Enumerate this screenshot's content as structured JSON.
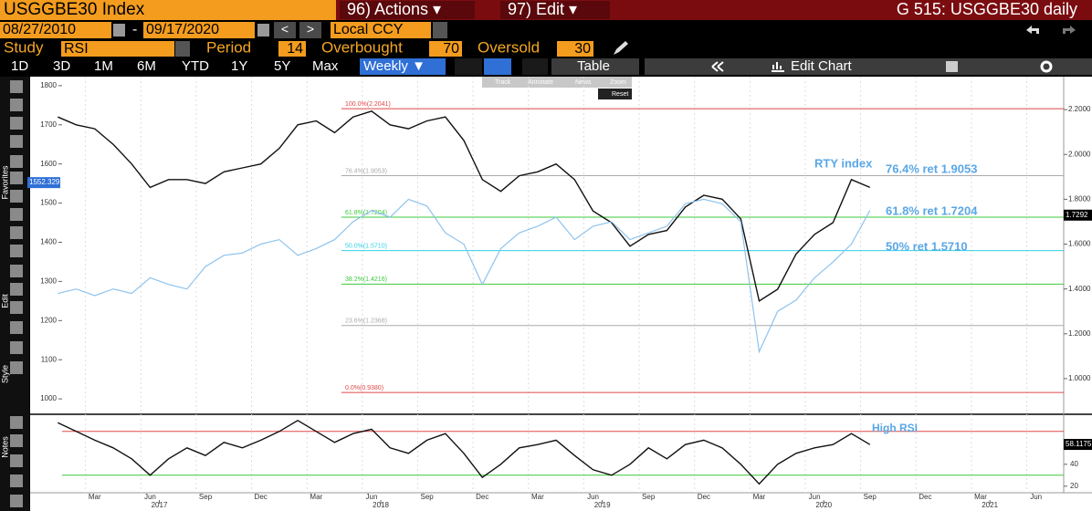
{
  "header": {
    "ticker": "USGGBE30 Index",
    "actions": "96) Actions ▾",
    "edit": "97) Edit ▾",
    "page": "G 515: USGGBE30 daily"
  },
  "controls": {
    "start_date": "08/27/2010",
    "date_separator": "-",
    "end_date": "09/17/2020",
    "nav": [
      "<",
      ">"
    ],
    "currency": "Local CCY",
    "study_label": "Study",
    "study": "RSI",
    "period_label": "Period",
    "period": 14,
    "overbought_label": "Overbought",
    "overbought": 70,
    "oversold_label": "Oversold",
    "oversold": 30
  },
  "tabs": [
    "1D",
    "3D",
    "1M",
    "6M",
    "YTD",
    "1Y",
    "5Y",
    "Max",
    "Weekly ▼"
  ],
  "table": "Table",
  "edit_chart": "Edit Chart",
  "tools": [
    "Track",
    "Annotate",
    "News",
    "Zoom",
    "Reset"
  ],
  "side_labels": [
    "Favorites",
    "Edit",
    "Style",
    "Notes"
  ],
  "chart_data": [
    {
      "type": "line",
      "x": [
        "2017-01",
        "2017-02",
        "2017-03",
        "2017-04",
        "2017-05",
        "2017-06",
        "2017-07",
        "2017-08",
        "2017-09",
        "2017-10",
        "2017-11",
        "2017-12",
        "2018-01",
        "2018-02",
        "2018-03",
        "2018-04",
        "2018-05",
        "2018-06",
        "2018-07",
        "2018-08",
        "2018-09",
        "2018-10",
        "2018-11",
        "2018-12",
        "2019-01",
        "2019-02",
        "2019-03",
        "2019-04",
        "2019-05",
        "2019-06",
        "2019-07",
        "2019-08",
        "2019-09",
        "2019-10",
        "2019-11",
        "2019-12",
        "2020-01",
        "2020-02",
        "2020-03",
        "2020-04",
        "2020-05",
        "2020-06",
        "2020-07",
        "2020-08",
        "2020-09"
      ],
      "xlim": [
        "2016-12",
        "2021-08"
      ],
      "series": [
        {
          "color": "#111111",
          "values": [
            1720,
            1700,
            1690,
            1650,
            1600,
            1540,
            1560,
            1560,
            1550,
            1580,
            1590,
            1600,
            1640,
            1700,
            1710,
            1680,
            1720,
            1735,
            1700,
            1690,
            1710,
            1720,
            1660,
            1560,
            1530,
            1570,
            1580,
            1600,
            1560,
            1480,
            1450,
            1390,
            1420,
            1430,
            1490,
            1520,
            1510,
            1460,
            1250,
            1280,
            1370,
            1420,
            1450,
            1560,
            1540
          ]
        },
        {
          "name": "RTY index",
          "color": "#8ec3ee",
          "axis": "y2",
          "values": [
            1.38,
            1.4,
            1.37,
            1.4,
            1.38,
            1.45,
            1.42,
            1.4,
            1.5,
            1.55,
            1.56,
            1.6,
            1.62,
            1.55,
            1.58,
            1.62,
            1.7,
            1.75,
            1.72,
            1.8,
            1.77,
            1.65,
            1.6,
            1.42,
            1.58,
            1.65,
            1.68,
            1.72,
            1.62,
            1.68,
            1.7,
            1.62,
            1.65,
            1.68,
            1.78,
            1.8,
            1.78,
            1.7,
            1.12,
            1.3,
            1.35,
            1.45,
            1.52,
            1.6,
            1.75
          ]
        }
      ],
      "ylim": [
        963,
        1823
      ],
      "yticks": [
        1000,
        1100,
        1200,
        1300,
        1400,
        1500,
        1600,
        1700,
        1800
      ],
      "y2lim": [
        0.845,
        2.347
      ],
      "y2ticks": [
        {
          "value": 1.0,
          "label": "1.0000"
        },
        {
          "value": 1.2,
          "label": "1.2000"
        },
        {
          "value": 1.4,
          "label": "1.4000"
        },
        {
          "value": 1.6,
          "label": "1.6000"
        },
        {
          "value": 1.8,
          "label": "1.8000"
        },
        {
          "value": 2.0,
          "label": "2.0000"
        },
        {
          "value": 2.2,
          "label": "2.2000"
        }
      ],
      "fib_levels": [
        {
          "label": "100.0%(2.2041)",
          "value": 2.2041,
          "color": "#e04848"
        },
        {
          "label": "76.4%(1.9053)",
          "value": 1.9053,
          "color": "#aaaaaa"
        },
        {
          "label": "61.8%(1.7204)",
          "value": 1.7204,
          "color": "#3cc83c"
        },
        {
          "label": "50.0%(1.5710)",
          "value": 1.571,
          "color": "#30d0e8"
        },
        {
          "label": "38.2%(1.4216)",
          "value": 1.4216,
          "color": "#3cc83c"
        },
        {
          "label": "23.6%(1.2368)",
          "value": 1.2368,
          "color": "#aaaaaa"
        },
        {
          "label": "0.0%(0.9380)",
          "value": 0.938,
          "color": "#e04848"
        }
      ],
      "annotations": [
        "RTY index",
        "76.4% ret 1.9053",
        "61.8% ret 1.7204",
        "50% ret 1.5710"
      ],
      "markers": [
        {
          "value": 1552.329,
          "axis": "y",
          "color": "#2f6fd6"
        },
        {
          "value": 1.7292,
          "axis": "y2",
          "color": "#000000"
        }
      ]
    },
    {
      "type": "line",
      "x": [
        "2017-01",
        "2017-02",
        "2017-03",
        "2017-04",
        "2017-05",
        "2017-06",
        "2017-07",
        "2017-08",
        "2017-09",
        "2017-10",
        "2017-11",
        "2017-12",
        "2018-01",
        "2018-02",
        "2018-03",
        "2018-04",
        "2018-05",
        "2018-06",
        "2018-07",
        "2018-08",
        "2018-09",
        "2018-10",
        "2018-11",
        "2018-12",
        "2019-01",
        "2019-02",
        "2019-03",
        "2019-04",
        "2019-05",
        "2019-06",
        "2019-07",
        "2019-08",
        "2019-09",
        "2019-10",
        "2019-11",
        "2019-12",
        "2020-01",
        "2020-02",
        "2020-03",
        "2020-04",
        "2020-05",
        "2020-06",
        "2020-07",
        "2020-08",
        "2020-09"
      ],
      "xlim": [
        "2016-12",
        "2021-08"
      ],
      "series": [
        {
          "color": "#111111",
          "values": [
            78,
            70,
            62,
            55,
            45,
            30,
            45,
            55,
            48,
            60,
            55,
            62,
            70,
            80,
            70,
            60,
            68,
            72,
            55,
            50,
            62,
            68,
            50,
            28,
            40,
            55,
            58,
            62,
            48,
            35,
            30,
            40,
            55,
            45,
            58,
            62,
            55,
            40,
            22,
            40,
            50,
            55,
            58,
            68,
            58
          ]
        }
      ],
      "ylim": [
        14,
        84
      ],
      "yticks": [
        20,
        40
      ],
      "annotations": [
        "High RSI"
      ],
      "markers": [
        {
          "value": 58.1175,
          "axis": "y",
          "color": "#000000"
        }
      ],
      "xticks": [
        {
          "value": "2017-03",
          "label": "Mar"
        },
        {
          "value": "2017-06",
          "label": "Jun"
        },
        {
          "value": "2017-09",
          "label": "Sep"
        },
        {
          "value": "2017-12",
          "label": "Dec"
        },
        {
          "value": "2018-03",
          "label": "Mar"
        },
        {
          "value": "2018-06",
          "label": "Jun"
        },
        {
          "value": "2018-09",
          "label": "Sep"
        },
        {
          "value": "2018-12",
          "label": "Dec"
        },
        {
          "value": "2019-03",
          "label": "Mar"
        },
        {
          "value": "2019-06",
          "label": "Jun"
        },
        {
          "value": "2019-09",
          "label": "Sep"
        },
        {
          "value": "2019-12",
          "label": "Dec"
        },
        {
          "value": "2020-03",
          "label": "Mar"
        },
        {
          "value": "2020-06",
          "label": "Jun"
        },
        {
          "value": "2020-09",
          "label": "Sep"
        },
        {
          "value": "2020-12",
          "label": "Dec"
        },
        {
          "value": "2021-03",
          "label": "Mar"
        },
        {
          "value": "2021-06",
          "label": "Jun"
        }
      ],
      "year_ticks": [
        {
          "value": "2017-07",
          "label": "2017"
        },
        {
          "value": "2018-07",
          "label": "2018"
        },
        {
          "value": "2019-07",
          "label": "2019"
        },
        {
          "value": "2020-07",
          "label": "2020"
        },
        {
          "value": "2021-04",
          "label": "2021"
        }
      ]
    }
  ]
}
